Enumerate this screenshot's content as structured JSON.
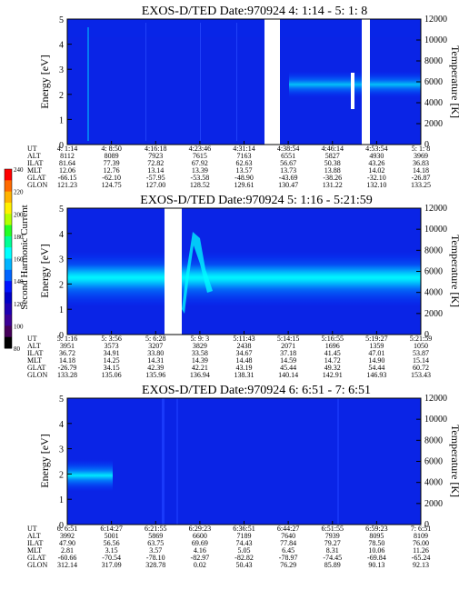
{
  "colorbar": {
    "label": "Second Harmonic Current",
    "ticks": [
      "240",
      "220",
      "200",
      "180",
      "160",
      "140",
      "120",
      "100",
      "80"
    ],
    "colors": [
      "#ff0000",
      "#ff6a00",
      "#ffb300",
      "#fff000",
      "#b4ff00",
      "#24ff24",
      "#00ff96",
      "#00ffff",
      "#00b4ff",
      "#0064ff",
      "#0014ff",
      "#0000c8",
      "#1e00b4",
      "#3c0096",
      "#46005a",
      "#000000"
    ]
  },
  "chart_data": [
    {
      "type": "heatmap",
      "title": "EXOS-D/TED   Date:970924  4: 1:14 - 5: 1: 8",
      "ylabel": "Energy [eV]",
      "y2label": "Temperature [K]",
      "ylim": [
        0,
        5
      ],
      "y2lim": [
        0,
        12000
      ],
      "y_ticks": [
        "5",
        "4",
        "3",
        "2",
        "1",
        "0"
      ],
      "y2_ticks": [
        "12000",
        "10000",
        "8000",
        "6000",
        "4000",
        "2000",
        "0"
      ],
      "x_ticks": [
        "4: 1:14",
        "4: 8:50",
        "4:16:18",
        "4:23:46",
        "4:31:14",
        "4:38:54",
        "4:46:14",
        "4:53:54",
        "5: 1: 8"
      ],
      "rows": [
        {
          "label": "UT",
          "values": [
            "4: 1:14",
            "4: 8:50",
            "4:16:18",
            "4:23:46",
            "4:31:14",
            "4:38:54",
            "4:46:14",
            "4:53:54",
            "5: 1: 8"
          ]
        },
        {
          "label": "ALT",
          "values": [
            "8112",
            "8089",
            "7923",
            "7615",
            "7163",
            "6551",
            "5827",
            "4930",
            "3969"
          ]
        },
        {
          "label": "ILAT",
          "values": [
            "81.64",
            "77.39",
            "72.82",
            "67.92",
            "62.63",
            "56.67",
            "50.38",
            "43.26",
            "36.83"
          ]
        },
        {
          "label": "MLT",
          "values": [
            "12.06",
            "12.76",
            "13.14",
            "13.39",
            "13.57",
            "13.73",
            "13.88",
            "14.02",
            "14.18"
          ]
        },
        {
          "label": "GLAT",
          "values": [
            "-66.15",
            "-62.10",
            "-57.95",
            "-53.58",
            "-48.90",
            "-43.69",
            "-38.26",
            "-32.10",
            "-26.87"
          ]
        },
        {
          "label": "GLON",
          "values": [
            "121.23",
            "124.75",
            "127.00",
            "128.52",
            "129.61",
            "130.47",
            "131.22",
            "132.10",
            "133.25"
          ]
        }
      ]
    },
    {
      "type": "heatmap",
      "title": "EXOS-D/TED   Date:970924  5: 1:16 - 5:21:59",
      "ylabel": "Energy [eV]",
      "y2label": "Temperature [K]",
      "ylim": [
        0,
        5
      ],
      "y2lim": [
        0,
        12000
      ],
      "y_ticks": [
        "5",
        "4",
        "3",
        "2",
        "1",
        "0"
      ],
      "y2_ticks": [
        "12000",
        "10000",
        "8000",
        "6000",
        "4000",
        "2000",
        "0"
      ],
      "x_ticks": [
        "5: 1:16",
        "5: 3:56",
        "5: 6:28",
        "5: 9: 3",
        "5:11:43",
        "5:14:15",
        "5:16:55",
        "5:19:27",
        "5:21:59"
      ],
      "rows": [
        {
          "label": "UT",
          "values": [
            "5: 1:16",
            "5: 3:56",
            "5: 6:28",
            "5: 9: 3",
            "5:11:43",
            "5:14:15",
            "5:16:55",
            "5:19:27",
            "5:21:59"
          ]
        },
        {
          "label": "ALT",
          "values": [
            "3951",
            "3573",
            "3207",
            "3829",
            "2438",
            "2071",
            "1696",
            "1359",
            "1050"
          ]
        },
        {
          "label": "ILAT",
          "values": [
            "36.72",
            "34.91",
            "33.80",
            "33.58",
            "34.67",
            "37.18",
            "41.45",
            "47.01",
            "53.87"
          ]
        },
        {
          "label": "MLT",
          "values": [
            "14.18",
            "14.25",
            "14.31",
            "14.39",
            "14.48",
            "14.59",
            "14.72",
            "14.90",
            "15.14"
          ]
        },
        {
          "label": "GLAT",
          "values": [
            "-26.79",
            "34.15",
            "42.39",
            "42.21",
            "43.19",
            "45.44",
            "49.32",
            "54.44",
            "60.72"
          ]
        },
        {
          "label": "GLON",
          "values": [
            "133.28",
            "135.06",
            "135.96",
            "136.94",
            "138.31",
            "140.14",
            "142.91",
            "146.93",
            "153.43"
          ]
        }
      ]
    },
    {
      "type": "heatmap",
      "title": "EXOS-D/TED   Date:970924  6: 6:51 - 7: 6:51",
      "ylabel": "Energy [eV]",
      "y2label": "Temperature [K]",
      "ylim": [
        0,
        5
      ],
      "y2lim": [
        0,
        12000
      ],
      "y_ticks": [
        "5",
        "4",
        "3",
        "2",
        "1",
        "0"
      ],
      "y2_ticks": [
        "12000",
        "10000",
        "8000",
        "6000",
        "4000",
        "2000",
        "0"
      ],
      "x_ticks": [
        "6: 6:51",
        "6:14:27",
        "6:21:55",
        "6:29:23",
        "6:36:51",
        "6:44:27",
        "6:51:55",
        "6:59:23",
        "7: 6:51"
      ],
      "rows": [
        {
          "label": "UT",
          "values": [
            "6: 6:51",
            "6:14:27",
            "6:21:55",
            "6:29:23",
            "6:36:51",
            "6:44:27",
            "6:51:55",
            "6:59:23",
            "7: 6:51"
          ]
        },
        {
          "label": "ALT",
          "values": [
            "3992",
            "5001",
            "5869",
            "6600",
            "7189",
            "7640",
            "7939",
            "8095",
            "8109"
          ]
        },
        {
          "label": "ILAT",
          "values": [
            "47.90",
            "56.56",
            "63.75",
            "69.69",
            "74.43",
            "77.84",
            "79.27",
            "78.50",
            "76.00"
          ]
        },
        {
          "label": "MLT",
          "values": [
            "2.81",
            "3.15",
            "3.57",
            "4.16",
            "5.05",
            "6.45",
            "8.31",
            "10.06",
            "11.26"
          ]
        },
        {
          "label": "GLAT",
          "values": [
            "-60.66",
            "-70.54",
            "-78.10",
            "-82.97",
            "-82.82",
            "-78.97",
            "-74.45",
            "-69.84",
            "-65.24"
          ]
        },
        {
          "label": "GLON",
          "values": [
            "312.14",
            "317.09",
            "328.78",
            "0.02",
            "50.43",
            "76.29",
            "85.89",
            "90.13",
            "92.13"
          ]
        }
      ]
    }
  ]
}
